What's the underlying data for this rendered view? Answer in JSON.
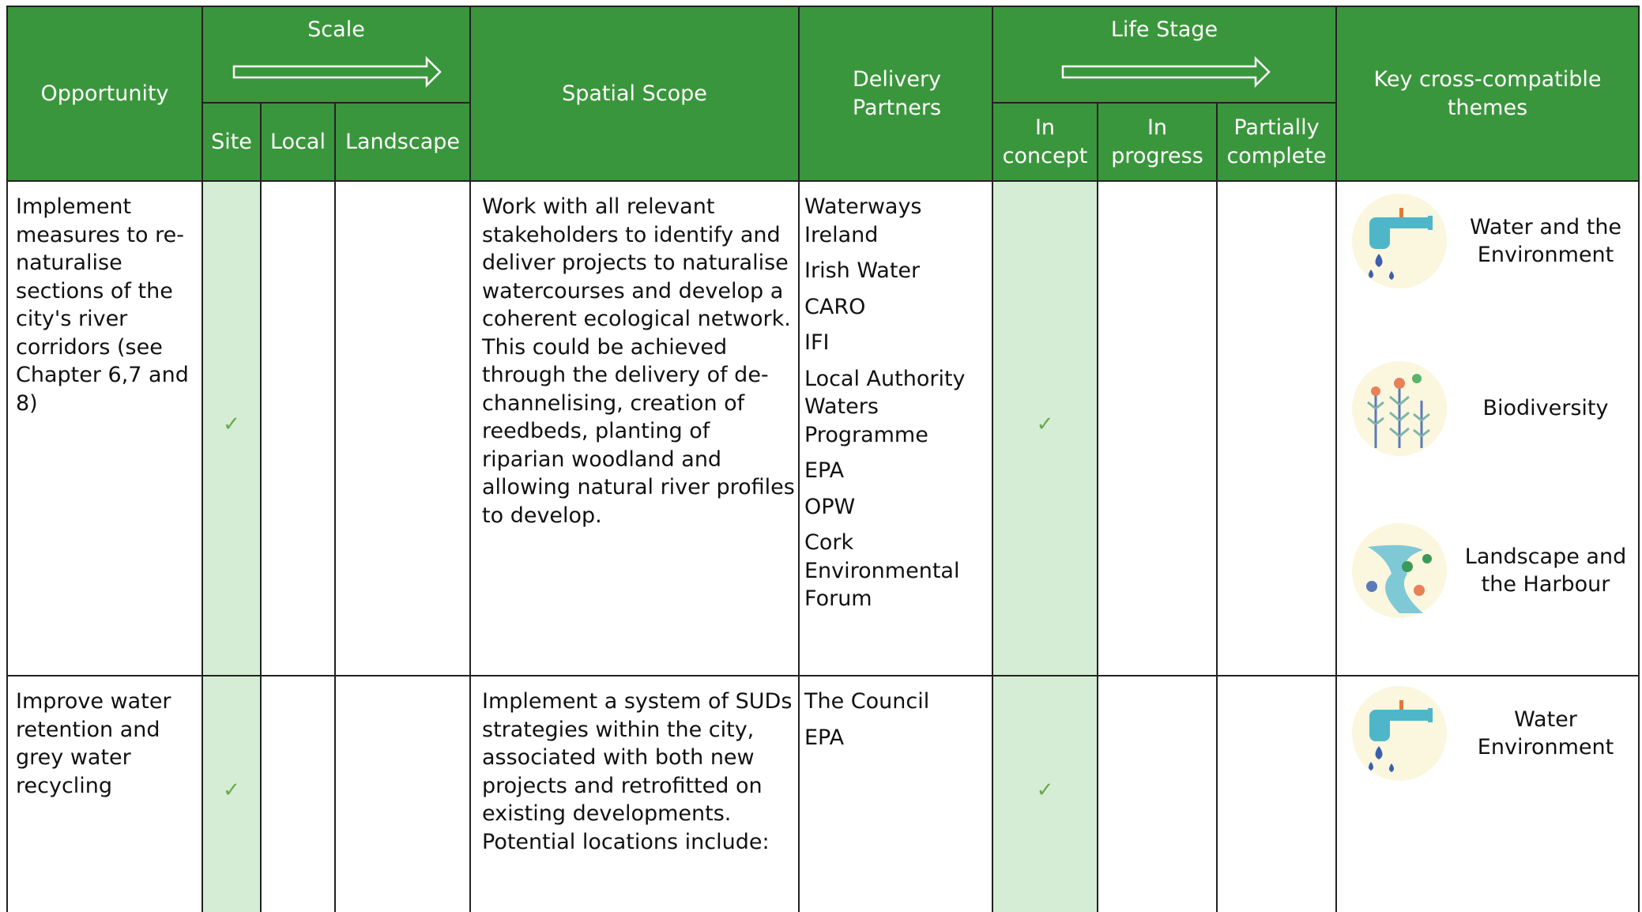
{
  "header": {
    "opportunity": "Opportunity",
    "scale": {
      "title": "Scale",
      "columns": [
        "Site",
        "Local",
        "Landscape"
      ]
    },
    "spatial_scope": "Spatial Scope",
    "delivery_partners": "Delivery Partners",
    "life_stage": {
      "title": "Life Stage",
      "columns": [
        "In concept",
        "In progress",
        "Partially complete"
      ]
    },
    "themes": "Key cross-compatible themes"
  },
  "rows": [
    {
      "opportunity": "Implement measures to re-naturalise sections of the city's river corridors (see Chapter 6,7 and 8)",
      "site_check": "✓",
      "in_concept_check": "✓",
      "spatial_scope": "Work with all relevant stakeholders to identify and deliver projects to naturalise watercourses and develop a coherent ecological network. This could be achieved through the delivery of de-channelising, creation of reedbeds, planting of riparian woodland and allowing natural river profiles to develop.",
      "partners": [
        "Waterways Ireland",
        "Irish Water",
        "CARO",
        "IFI",
        "Local Authority Waters Programme",
        "EPA",
        "OPW",
        "Cork Environmental Forum"
      ],
      "themes": [
        "Water and the Environment",
        "Biodiversity",
        "Landscape and the Harbour"
      ]
    },
    {
      "opportunity": "Improve water retention and grey water recycling",
      "site_check": "✓",
      "in_concept_check": "✓",
      "spatial_scope": "Implement a system of SUDs strategies within the city, associated with both new projects and retrofitted on existing developments. Potential locations include:",
      "partners": [
        "The Council",
        "EPA"
      ],
      "themes": [
        "Water Environment"
      ]
    }
  ]
}
